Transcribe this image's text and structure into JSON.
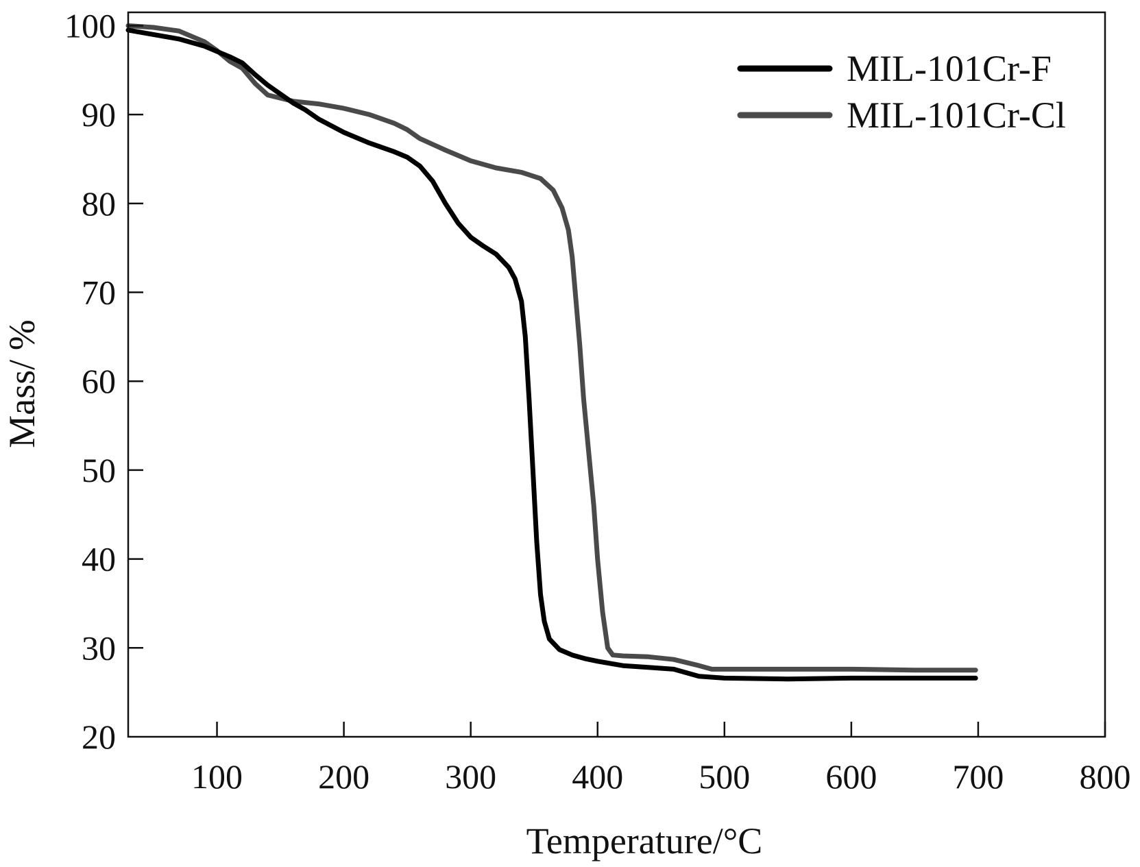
{
  "chart_data": {
    "type": "line",
    "title": "",
    "xlabel": "Temperature/°C",
    "ylabel": "Mass/ %",
    "xlim": [
      30,
      800
    ],
    "ylim": [
      20,
      101.5
    ],
    "xticks": [
      100,
      200,
      300,
      400,
      500,
      600,
      700,
      800
    ],
    "yticks": [
      20,
      30,
      40,
      50,
      60,
      70,
      80,
      90,
      100
    ],
    "grid": false,
    "legend_position": "top-right",
    "series": [
      {
        "name": "MIL-101Cr-F",
        "color": "#000000",
        "points": [
          [
            30,
            99.5
          ],
          [
            50,
            99.0
          ],
          [
            70,
            98.5
          ],
          [
            90,
            97.7
          ],
          [
            110,
            96.5
          ],
          [
            120,
            95.8
          ],
          [
            130,
            94.5
          ],
          [
            140,
            93.3
          ],
          [
            150,
            92.3
          ],
          [
            160,
            91.3
          ],
          [
            170,
            90.5
          ],
          [
            180,
            89.5
          ],
          [
            200,
            88.0
          ],
          [
            220,
            86.8
          ],
          [
            240,
            85.8
          ],
          [
            250,
            85.2
          ],
          [
            260,
            84.2
          ],
          [
            270,
            82.5
          ],
          [
            280,
            80.0
          ],
          [
            290,
            77.8
          ],
          [
            300,
            76.2
          ],
          [
            310,
            75.2
          ],
          [
            320,
            74.3
          ],
          [
            330,
            72.8
          ],
          [
            335,
            71.5
          ],
          [
            340,
            69.0
          ],
          [
            343,
            65.0
          ],
          [
            346,
            58.0
          ],
          [
            349,
            50.0
          ],
          [
            352,
            42.0
          ],
          [
            355,
            36.0
          ],
          [
            358,
            33.0
          ],
          [
            362,
            31.0
          ],
          [
            370,
            29.8
          ],
          [
            380,
            29.2
          ],
          [
            390,
            28.8
          ],
          [
            400,
            28.5
          ],
          [
            420,
            28.0
          ],
          [
            440,
            27.8
          ],
          [
            460,
            27.6
          ],
          [
            480,
            26.8
          ],
          [
            500,
            26.6
          ],
          [
            550,
            26.5
          ],
          [
            600,
            26.6
          ],
          [
            650,
            26.6
          ],
          [
            698,
            26.6
          ]
        ]
      },
      {
        "name": "MIL-101Cr-Cl",
        "color": "#4a4a4a",
        "points": [
          [
            30,
            100.0
          ],
          [
            50,
            99.8
          ],
          [
            70,
            99.4
          ],
          [
            90,
            98.2
          ],
          [
            100,
            97.2
          ],
          [
            110,
            96.0
          ],
          [
            120,
            95.2
          ],
          [
            130,
            93.5
          ],
          [
            140,
            92.2
          ],
          [
            160,
            91.5
          ],
          [
            180,
            91.2
          ],
          [
            200,
            90.7
          ],
          [
            220,
            90.0
          ],
          [
            240,
            89.0
          ],
          [
            250,
            88.3
          ],
          [
            260,
            87.3
          ],
          [
            280,
            86.0
          ],
          [
            300,
            84.8
          ],
          [
            320,
            84.0
          ],
          [
            340,
            83.5
          ],
          [
            355,
            82.8
          ],
          [
            365,
            81.5
          ],
          [
            372,
            79.5
          ],
          [
            377,
            77.0
          ],
          [
            380,
            74.0
          ],
          [
            383,
            69.0
          ],
          [
            386,
            64.0
          ],
          [
            389,
            58.0
          ],
          [
            393,
            52.0
          ],
          [
            397,
            46.0
          ],
          [
            400,
            40.0
          ],
          [
            404,
            34.0
          ],
          [
            408,
            30.0
          ],
          [
            412,
            29.2
          ],
          [
            420,
            29.1
          ],
          [
            440,
            29.0
          ],
          [
            460,
            28.7
          ],
          [
            480,
            28.0
          ],
          [
            490,
            27.6
          ],
          [
            520,
            27.6
          ],
          [
            600,
            27.6
          ],
          [
            650,
            27.5
          ],
          [
            698,
            27.5
          ]
        ]
      }
    ]
  }
}
